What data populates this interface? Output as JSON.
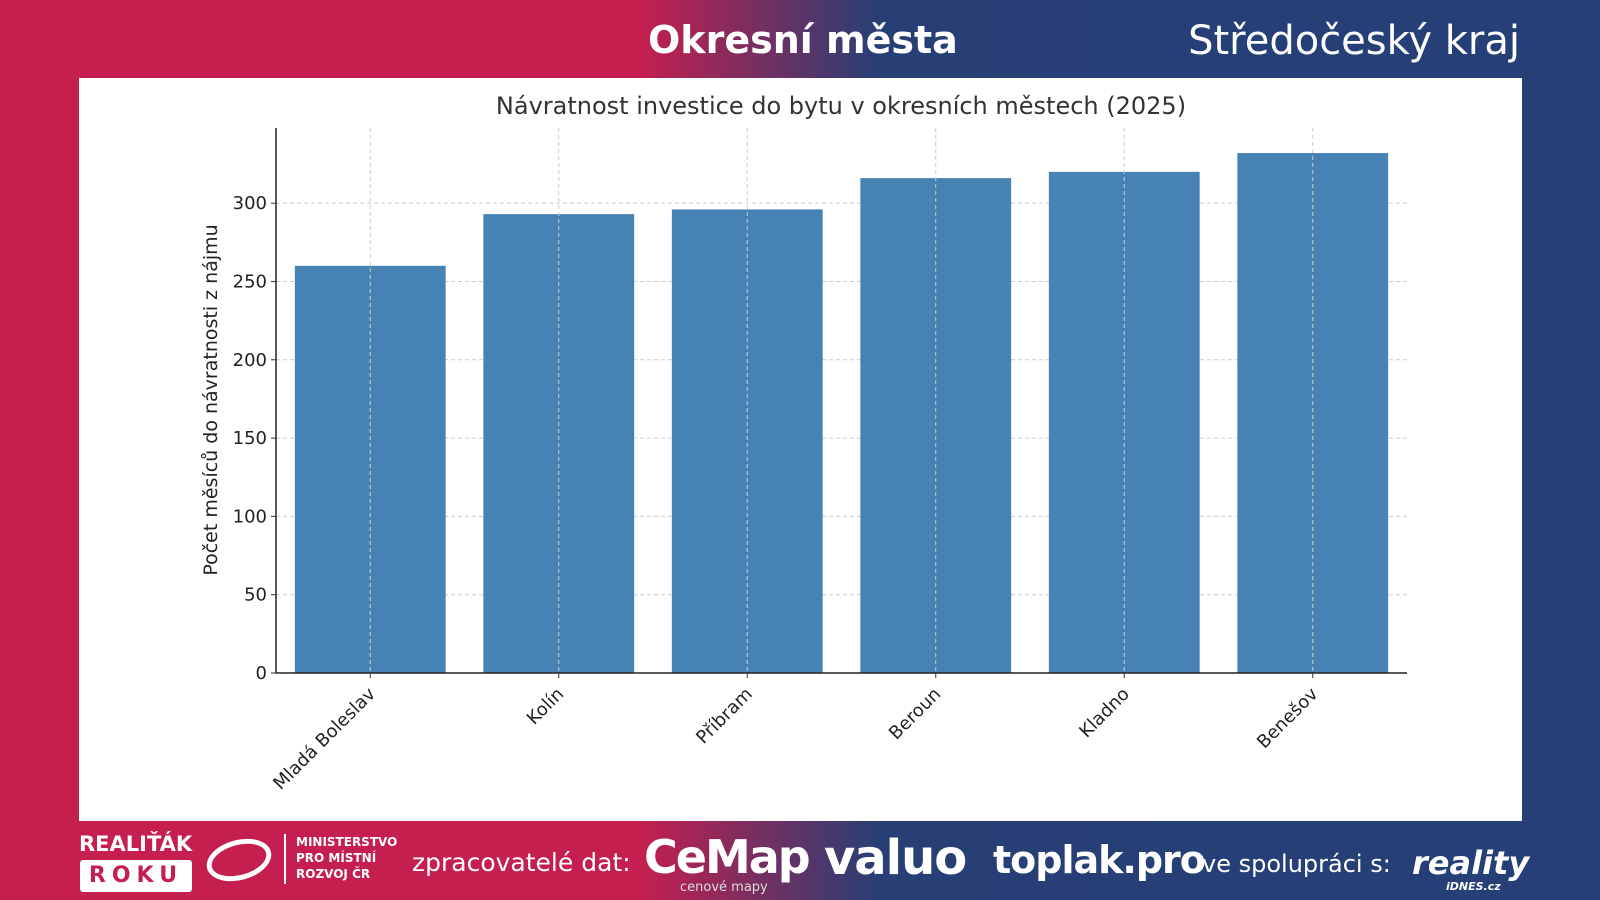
{
  "header": {
    "title": "Okresní města",
    "region": "Středočeský kraj"
  },
  "chart_data": {
    "type": "bar",
    "title": "Návratnost investice do bytu v okresních městech (2025)",
    "xlabel": "",
    "ylabel": "Počet měsíců do návratnosti z nájmu",
    "categories": [
      "Mladá Boleslav",
      "Kolín",
      "Příbram",
      "Beroun",
      "Kladno",
      "Benešov"
    ],
    "values": [
      260,
      293,
      296,
      316,
      320,
      332
    ],
    "ylim": [
      0,
      348
    ],
    "yticks": [
      0,
      50,
      100,
      150,
      200,
      250,
      300
    ],
    "grid": true,
    "color": "#4682b4"
  },
  "footer": {
    "award_top": "REALIŤÁK",
    "award_bottom": "ROKU",
    "ministry": [
      "MINISTERSTVO",
      "PRO MÍSTNÍ",
      "ROZVOJ ČR"
    ],
    "processors_label": "zpracovatelé dat:",
    "cemap": "CeMap",
    "cemap_sub": "cenové mapy",
    "valuo": "valuo",
    "toplak": "toplak.pro",
    "partner_label": "ve spolupráci s:",
    "reality": "reality",
    "reality_sub": "iDNES.cz"
  }
}
